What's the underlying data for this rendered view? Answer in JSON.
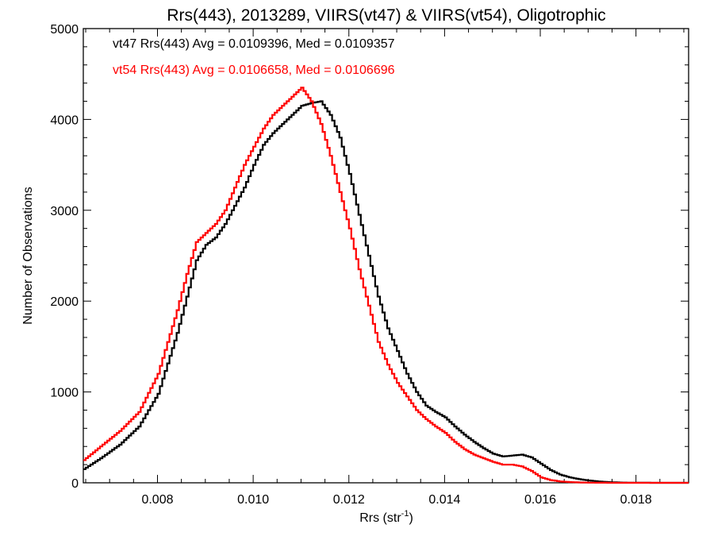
{
  "chart_data": {
    "type": "line",
    "step": true,
    "title": "Rrs(443), 2013289, VIIRS(vt47) & VIIRS(vt54), Oligotrophic",
    "xlabel_base": "Rrs (str",
    "xlabel_sup": "-1",
    "xlabel_end": ")",
    "ylabel": "Number of Observations",
    "xlim": [
      0.00645,
      0.0191
    ],
    "ylim": [
      0,
      5000
    ],
    "x_ticks": [
      0.008,
      0.01,
      0.012,
      0.014,
      0.016,
      0.018
    ],
    "x_tick_labels": [
      "0.008",
      "0.010",
      "0.012",
      "0.014",
      "0.016",
      "0.018"
    ],
    "y_ticks": [
      0,
      1000,
      2000,
      3000,
      4000,
      5000
    ],
    "y_tick_labels": [
      "0",
      "1000",
      "2000",
      "3000",
      "4000",
      "5000"
    ],
    "legend_placement": "top-left",
    "series": [
      {
        "legend_text": "vt47 Rrs(443) Avg = 0.0109396, Med = 0.0109357",
        "color": "#000000",
        "points": [
          [
            0.00645,
            150
          ],
          [
            0.0068,
            270
          ],
          [
            0.0072,
            420
          ],
          [
            0.0076,
            620
          ],
          [
            0.008,
            980
          ],
          [
            0.0084,
            1650
          ],
          [
            0.0088,
            2450
          ],
          [
            0.009,
            2620
          ],
          [
            0.0092,
            2700
          ],
          [
            0.0094,
            2850
          ],
          [
            0.0096,
            3050
          ],
          [
            0.0098,
            3250
          ],
          [
            0.01,
            3500
          ],
          [
            0.0102,
            3720
          ],
          [
            0.0104,
            3850
          ],
          [
            0.0106,
            3950
          ],
          [
            0.0108,
            4050
          ],
          [
            0.011,
            4150
          ],
          [
            0.0112,
            4180
          ],
          [
            0.0114,
            4200
          ],
          [
            0.0116,
            4050
          ],
          [
            0.0118,
            3800
          ],
          [
            0.012,
            3400
          ],
          [
            0.0122,
            2950
          ],
          [
            0.0124,
            2500
          ],
          [
            0.0126,
            2050
          ],
          [
            0.0128,
            1700
          ],
          [
            0.013,
            1450
          ],
          [
            0.0132,
            1200
          ],
          [
            0.0134,
            1000
          ],
          [
            0.0136,
            850
          ],
          [
            0.0138,
            780
          ],
          [
            0.014,
            720
          ],
          [
            0.0142,
            620
          ],
          [
            0.0144,
            530
          ],
          [
            0.0146,
            450
          ],
          [
            0.0148,
            380
          ],
          [
            0.015,
            320
          ],
          [
            0.0152,
            290
          ],
          [
            0.0154,
            300
          ],
          [
            0.0156,
            310
          ],
          [
            0.0158,
            280
          ],
          [
            0.016,
            210
          ],
          [
            0.0162,
            140
          ],
          [
            0.0164,
            90
          ],
          [
            0.0166,
            60
          ],
          [
            0.0168,
            40
          ],
          [
            0.017,
            25
          ],
          [
            0.0172,
            15
          ],
          [
            0.0174,
            8
          ],
          [
            0.0176,
            4
          ],
          [
            0.0178,
            2
          ],
          [
            0.018,
            1
          ],
          [
            0.0185,
            0
          ],
          [
            0.0191,
            0
          ]
        ]
      },
      {
        "legend_text": "vt54 Rrs(443) Avg = 0.0106658, Med = 0.0106696",
        "color": "#ff0000",
        "points": [
          [
            0.00645,
            250
          ],
          [
            0.0068,
            400
          ],
          [
            0.0072,
            570
          ],
          [
            0.0076,
            780
          ],
          [
            0.008,
            1200
          ],
          [
            0.0084,
            1900
          ],
          [
            0.0086,
            2300
          ],
          [
            0.0088,
            2650
          ],
          [
            0.009,
            2750
          ],
          [
            0.0092,
            2850
          ],
          [
            0.0094,
            3000
          ],
          [
            0.0096,
            3250
          ],
          [
            0.0098,
            3500
          ],
          [
            0.01,
            3700
          ],
          [
            0.0102,
            3900
          ],
          [
            0.0104,
            4050
          ],
          [
            0.0106,
            4150
          ],
          [
            0.0108,
            4250
          ],
          [
            0.011,
            4350
          ],
          [
            0.0112,
            4200
          ],
          [
            0.0114,
            3950
          ],
          [
            0.0116,
            3600
          ],
          [
            0.0118,
            3200
          ],
          [
            0.012,
            2800
          ],
          [
            0.0122,
            2350
          ],
          [
            0.0124,
            1950
          ],
          [
            0.0126,
            1550
          ],
          [
            0.0128,
            1300
          ],
          [
            0.013,
            1100
          ],
          [
            0.0132,
            950
          ],
          [
            0.0134,
            800
          ],
          [
            0.0136,
            700
          ],
          [
            0.0138,
            620
          ],
          [
            0.014,
            550
          ],
          [
            0.0142,
            450
          ],
          [
            0.0144,
            370
          ],
          [
            0.0146,
            310
          ],
          [
            0.0148,
            270
          ],
          [
            0.015,
            230
          ],
          [
            0.0152,
            200
          ],
          [
            0.0154,
            200
          ],
          [
            0.0156,
            180
          ],
          [
            0.0158,
            130
          ],
          [
            0.016,
            60
          ],
          [
            0.0162,
            30
          ],
          [
            0.0164,
            15
          ],
          [
            0.0166,
            8
          ],
          [
            0.0168,
            4
          ],
          [
            0.017,
            2
          ],
          [
            0.0172,
            1
          ],
          [
            0.0175,
            0
          ],
          [
            0.0191,
            0
          ]
        ]
      }
    ]
  }
}
